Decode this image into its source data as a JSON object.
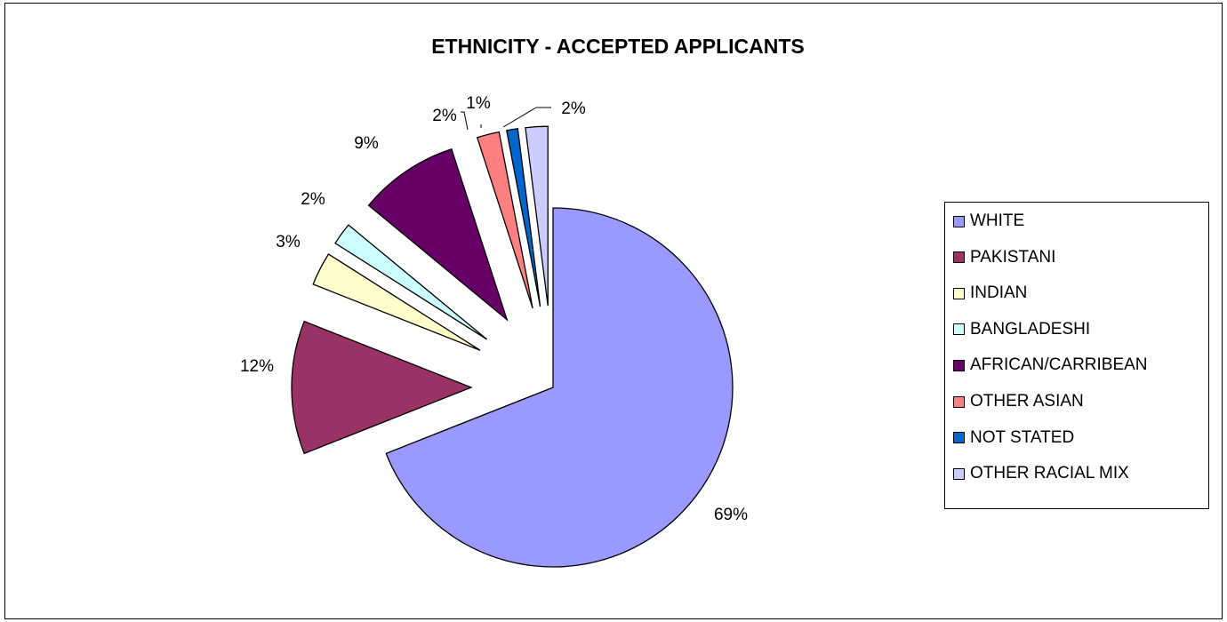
{
  "chart_data": {
    "type": "pie",
    "title": "ETHNICITY - ACCEPTED APPLICANTS",
    "slices": [
      {
        "label": "WHITE",
        "value": 69,
        "display": "69%",
        "color": "#9999FF",
        "exploded": false
      },
      {
        "label": "PAKISTANI",
        "value": 12,
        "display": "12%",
        "color": "#993366",
        "exploded": true
      },
      {
        "label": "INDIAN",
        "value": 3,
        "display": "3%",
        "color": "#FFFFCC",
        "exploded": true
      },
      {
        "label": "BANGLADESHI",
        "value": 2,
        "display": "2%",
        "color": "#CCFFFF",
        "exploded": true
      },
      {
        "label": "AFRICAN/CARRIBEAN",
        "value": 9,
        "display": "9%",
        "color": "#660066",
        "exploded": true
      },
      {
        "label": "OTHER ASIAN",
        "value": 2,
        "display": "2%",
        "color": "#FF8080",
        "exploded": true
      },
      {
        "label": "NOT STATED",
        "value": 1,
        "display": "1%",
        "color": "#0066CC",
        "exploded": true
      },
      {
        "label": "OTHER RACIAL MIX",
        "value": 2,
        "display": "2%",
        "color": "#CCCCFF",
        "exploded": true
      }
    ],
    "legend_position": "right"
  }
}
